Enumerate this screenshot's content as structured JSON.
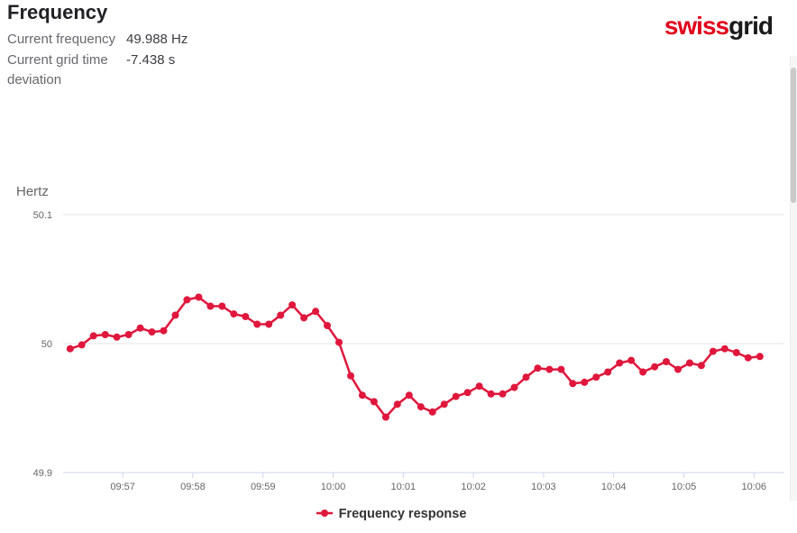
{
  "header": {
    "title": "Frequency",
    "stats": [
      {
        "label": "Current frequency",
        "value": "49.988 Hz"
      },
      {
        "label": "Current grid time deviation",
        "value": "-7.438 s"
      }
    ]
  },
  "logo": {
    "first": "swiss",
    "second": "grid"
  },
  "colors": {
    "brand_red": "#e2001a",
    "series_red": "#e0173c",
    "grid_line": "#e6e6e6",
    "axis_line": "#ccd6eb",
    "tick_label": "#666666",
    "legend_text": "#333333"
  },
  "chart_data": {
    "type": "line",
    "title": "",
    "ylabel": "Hertz",
    "xlabel": "",
    "ylim": [
      49.9,
      50.1
    ],
    "yticks": [
      50.1,
      50.0,
      49.9
    ],
    "ytick_labels": [
      "50.1",
      "50",
      "49.9"
    ],
    "xticks": [
      "09:57",
      "09:58",
      "09:59",
      "10:00",
      "10:01",
      "10:02",
      "10:03",
      "10:04",
      "10:05",
      "10:06"
    ],
    "x_range_seconds": [
      -51,
      566
    ],
    "grid": "horizontal",
    "legend_position": "bottom-center",
    "series": [
      {
        "name": "Frequency response",
        "color": "#e0173c",
        "unit": "Hz",
        "start_time": "09:56:15",
        "start_offset_seconds": -45,
        "interval_seconds": 10,
        "values": [
          49.996,
          49.999,
          50.006,
          50.007,
          50.005,
          50.007,
          50.012,
          50.009,
          50.01,
          50.022,
          50.034,
          50.036,
          50.029,
          50.029,
          50.023,
          50.021,
          50.015,
          50.015,
          50.022,
          50.03,
          50.02,
          50.025,
          50.014,
          50.001,
          49.975,
          49.96,
          49.955,
          49.943,
          49.953,
          49.96,
          49.951,
          49.947,
          49.953,
          49.959,
          49.962,
          49.967,
          49.961,
          49.961,
          49.966,
          49.974,
          49.981,
          49.98,
          49.98,
          49.969,
          49.97,
          49.974,
          49.978,
          49.985,
          49.987,
          49.978,
          49.982,
          49.986,
          49.98,
          49.985,
          49.983,
          49.994,
          49.996,
          49.993,
          49.989,
          49.99
        ]
      }
    ]
  }
}
